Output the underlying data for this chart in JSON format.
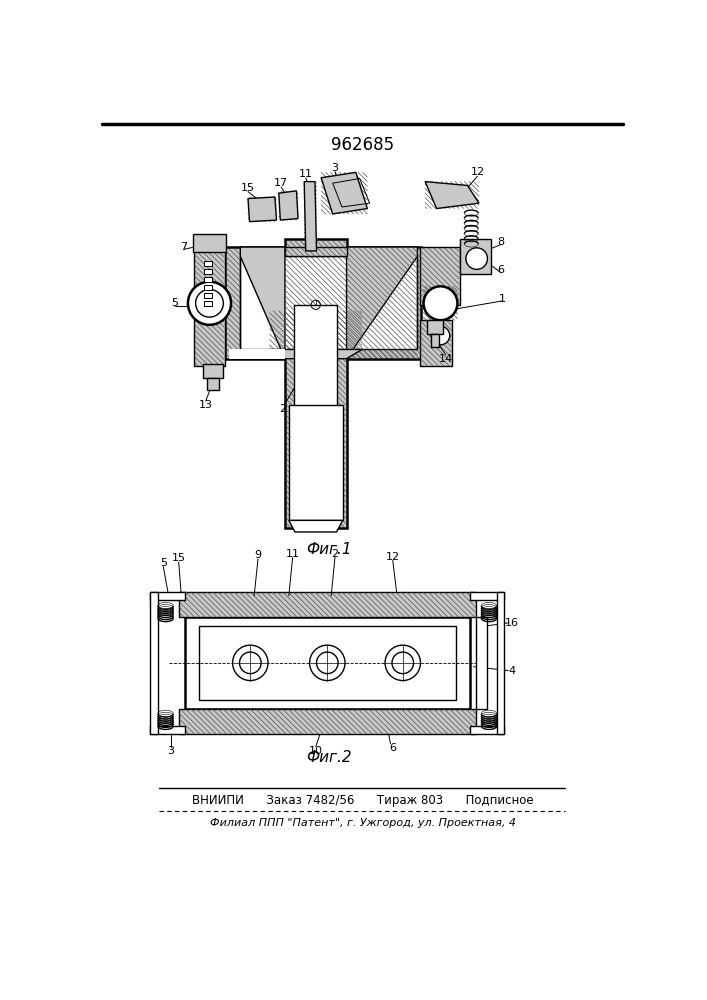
{
  "patent_number": "962685",
  "fig1_label": "Фиг.1",
  "fig2_label": "Фиг.2",
  "footer_line1": "ВНИИПИ      Заказ 7482/56      Тираж 803      Подписное",
  "footer_line2": "Филиал ППП \"Патент\", г. Ужгород, ул. Проектная, 4",
  "bg_color": "#ffffff",
  "lw": 1.0,
  "lw2": 1.8,
  "gray": "#c8c8c8",
  "hatch_gray": "#a0a0a0"
}
